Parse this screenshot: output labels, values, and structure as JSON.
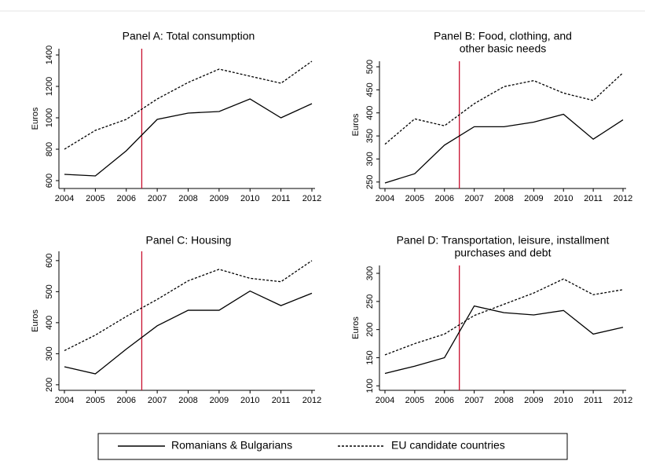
{
  "chart_data": [
    {
      "type": "line",
      "title": [
        "Panel A: Total consumption"
      ],
      "ylabel": "Euros",
      "x": [
        2004,
        2005,
        2006,
        2007,
        2008,
        2009,
        2010,
        2011,
        2012
      ],
      "series": [
        {
          "color": "#000000",
          "dashed": false,
          "values": [
            640,
            630,
            790,
            990,
            1030,
            1040,
            1120,
            1000,
            1090
          ]
        },
        {
          "color": "#000000",
          "dashed": true,
          "values": [
            800,
            920,
            990,
            1120,
            1225,
            1310,
            1265,
            1220,
            1360
          ]
        }
      ],
      "xlim": [
        2004,
        2012
      ],
      "xticks": [
        2004,
        2005,
        2006,
        2007,
        2008,
        2009,
        2010,
        2011,
        2012
      ],
      "ylim": [
        550,
        1440
      ],
      "yticks": [
        600,
        800,
        1000,
        1200,
        1400
      ],
      "vline": {
        "value": 2006.5,
        "color": "#c8102e"
      }
    },
    {
      "type": "line",
      "title": [
        "Panel B: Food, clothing, and",
        "other basic needs"
      ],
      "ylabel": "Euros",
      "x": [
        2004,
        2005,
        2006,
        2007,
        2008,
        2009,
        2010,
        2011,
        2012
      ],
      "series": [
        {
          "color": "#000000",
          "dashed": false,
          "values": [
            248,
            268,
            330,
            370,
            370,
            380,
            397,
            343,
            385
          ]
        },
        {
          "color": "#000000",
          "dashed": true,
          "values": [
            332,
            387,
            372,
            420,
            457,
            470,
            443,
            427,
            487
          ]
        }
      ],
      "xlim": [
        2004,
        2012
      ],
      "xticks": [
        2004,
        2005,
        2006,
        2007,
        2008,
        2009,
        2010,
        2011,
        2012
      ],
      "ylim": [
        236,
        512
      ],
      "yticks": [
        250,
        300,
        350,
        400,
        450,
        500
      ],
      "vline": {
        "value": 2006.5,
        "color": "#c8102e"
      }
    },
    {
      "type": "line",
      "title": [
        "Panel C: Housing"
      ],
      "ylabel": "Euros",
      "x": [
        2004,
        2005,
        2006,
        2007,
        2008,
        2009,
        2010,
        2011,
        2012
      ],
      "series": [
        {
          "color": "#000000",
          "dashed": false,
          "values": [
            258,
            235,
            315,
            390,
            440,
            440,
            502,
            455,
            495
          ]
        },
        {
          "color": "#000000",
          "dashed": true,
          "values": [
            310,
            360,
            420,
            475,
            535,
            572,
            543,
            532,
            600
          ]
        }
      ],
      "xlim": [
        2004,
        2012
      ],
      "xticks": [
        2004,
        2005,
        2006,
        2007,
        2008,
        2009,
        2010,
        2011,
        2012
      ],
      "ylim": [
        182,
        630
      ],
      "yticks": [
        200,
        300,
        400,
        500,
        600
      ],
      "vline": {
        "value": 2006.5,
        "color": "#c8102e"
      }
    },
    {
      "type": "line",
      "title": [
        "Panel D: Transportation, leisure, installment",
        "purchases and debt"
      ],
      "ylabel": "Euros",
      "x": [
        2004,
        2005,
        2006,
        2007,
        2008,
        2009,
        2010,
        2011,
        2012
      ],
      "series": [
        {
          "color": "#000000",
          "dashed": false,
          "values": [
            122,
            135,
            150,
            242,
            230,
            226,
            234,
            192,
            204
          ]
        },
        {
          "color": "#000000",
          "dashed": true,
          "values": [
            155,
            175,
            192,
            225,
            245,
            265,
            290,
            262,
            271
          ]
        }
      ],
      "xlim": [
        2004,
        2012
      ],
      "xticks": [
        2004,
        2005,
        2006,
        2007,
        2008,
        2009,
        2010,
        2011,
        2012
      ],
      "ylim": [
        92,
        314
      ],
      "yticks": [
        100,
        150,
        200,
        250,
        300
      ],
      "vline": {
        "value": 2006.5,
        "color": "#c8102e"
      }
    }
  ],
  "legend": [
    {
      "name": "Romanians & Bulgarians",
      "dashed": false
    },
    {
      "name": "EU candidate countries",
      "dashed": true
    }
  ]
}
